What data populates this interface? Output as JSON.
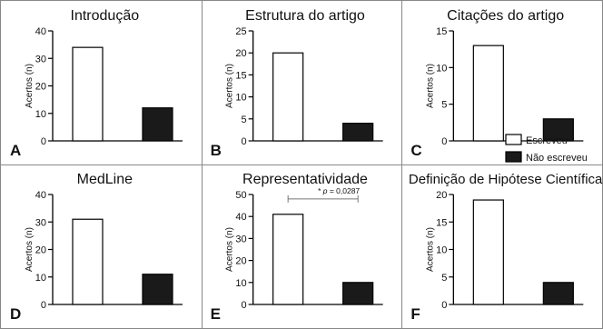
{
  "figure": {
    "legend": {
      "placement": "bottom-right of panel C",
      "entries": [
        {
          "label": "Escreveu",
          "fill": "#ffffff"
        },
        {
          "label": "Não escreveu",
          "fill": "#1a1a1a"
        }
      ]
    },
    "colors": {
      "wrote": "#ffffff",
      "did_not_write": "#1a1a1a",
      "stroke": "#000000",
      "panel_border": "#888888"
    }
  },
  "chart_data": [
    {
      "type": "bar",
      "panel": "A",
      "title": "Introdução",
      "ylabel": "Acertos (n)",
      "ylim": [
        0,
        40
      ],
      "yticks": [
        0,
        10,
        20,
        30,
        40
      ],
      "grid": false,
      "series": [
        {
          "name": "Escreveu",
          "values": [
            34
          ]
        },
        {
          "name": "Não escreveu",
          "values": [
            12
          ]
        }
      ]
    },
    {
      "type": "bar",
      "panel": "B",
      "title": "Estrutura do artigo",
      "ylabel": "Acertos (n)",
      "ylim": [
        0,
        25
      ],
      "yticks": [
        0,
        5,
        10,
        15,
        20,
        25
      ],
      "grid": false,
      "series": [
        {
          "name": "Escreveu",
          "values": [
            20
          ]
        },
        {
          "name": "Não escreveu",
          "values": [
            4
          ]
        }
      ]
    },
    {
      "type": "bar",
      "panel": "C",
      "title": "Citações do artigo",
      "ylabel": "Acertos (n)",
      "ylim": [
        0,
        15
      ],
      "yticks": [
        0,
        5,
        10,
        15
      ],
      "grid": false,
      "series": [
        {
          "name": "Escreveu",
          "values": [
            13
          ]
        },
        {
          "name": "Não escreveu",
          "values": [
            3
          ]
        }
      ]
    },
    {
      "type": "bar",
      "panel": "D",
      "title": "MedLine",
      "ylabel": "Acertos (n)",
      "ylim": [
        0,
        40
      ],
      "yticks": [
        0,
        10,
        20,
        30,
        40
      ],
      "grid": false,
      "series": [
        {
          "name": "Escreveu",
          "values": [
            31
          ]
        },
        {
          "name": "Não escreveu",
          "values": [
            11
          ]
        }
      ]
    },
    {
      "type": "bar",
      "panel": "E",
      "title": "Representatividade",
      "ylabel": "Acertos (n)",
      "ylim": [
        0,
        50
      ],
      "yticks": [
        0,
        10,
        20,
        30,
        40,
        50
      ],
      "grid": false,
      "annotation": {
        "prefix": "* ",
        "p": "p",
        "text": " = 0,0287",
        "level": 48
      },
      "series": [
        {
          "name": "Escreveu",
          "values": [
            41
          ]
        },
        {
          "name": "Não escreveu",
          "values": [
            10
          ]
        }
      ]
    },
    {
      "type": "bar",
      "panel": "F",
      "title": "Definição de Hipótese Científica",
      "ylabel": "Acertos (n)",
      "ylim": [
        0,
        20
      ],
      "yticks": [
        0,
        5,
        10,
        15,
        20
      ],
      "grid": false,
      "series": [
        {
          "name": "Escreveu",
          "values": [
            19
          ]
        },
        {
          "name": "Não escreveu",
          "values": [
            4
          ]
        }
      ]
    }
  ]
}
